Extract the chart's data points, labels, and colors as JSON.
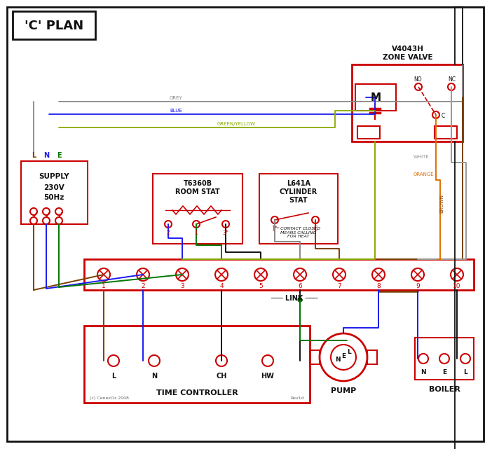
{
  "title": "'C' PLAN",
  "bg": "#ffffff",
  "red": "#cc0000",
  "blue": "#1a1aee",
  "green": "#007700",
  "brown": "#7B3F00",
  "grey": "#888888",
  "orange": "#E07000",
  "black": "#111111",
  "gy": "#88aa00",
  "white_w": "#999999",
  "copyright": "(c) CenexOz 2008",
  "rev": "Rev1d",
  "time_ctrl_title": "TIME CONTROLLER",
  "pump_title": "PUMP",
  "boiler_title": "BOILER",
  "link_label": "LINK"
}
